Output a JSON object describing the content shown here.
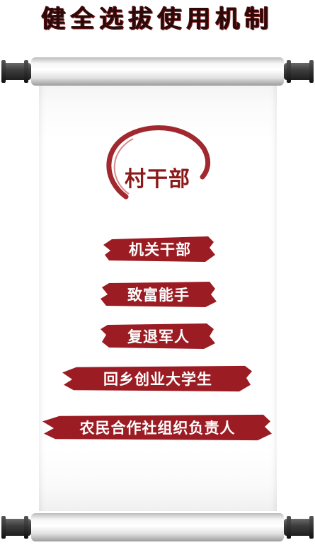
{
  "title": "健全选拔使用机制",
  "headline": "村干部",
  "colors": {
    "accent": "#9b1c23",
    "title": "#2a0a0a"
  },
  "items": [
    {
      "label": "机关干部"
    },
    {
      "label": "致富能手"
    },
    {
      "label": "复退军人"
    },
    {
      "label": "回乡创业大学生"
    },
    {
      "label": "农民合作社组织负责人"
    }
  ]
}
